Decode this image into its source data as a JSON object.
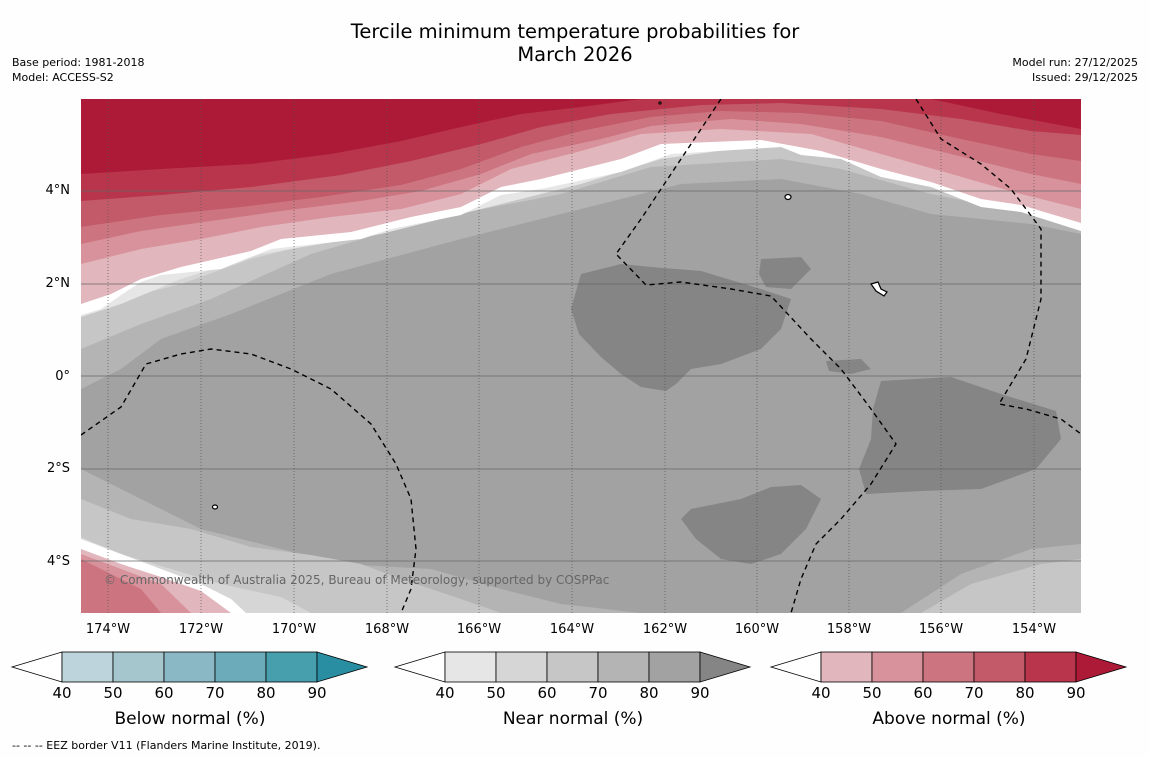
{
  "title": {
    "line1": "Tercile minimum temperature probabilities for",
    "line2": "March 2026"
  },
  "meta_left": {
    "base_period": "Base period: 1981-2018",
    "model": "Model: ACCESS-S2"
  },
  "meta_right": {
    "model_run": "Model run: 27/12/2025",
    "issued": "Issued: 29/12/2025"
  },
  "latitude_labels": [
    "4°N",
    "2°N",
    "0°",
    "2°S",
    "4°S"
  ],
  "longitude_labels": [
    "174°W",
    "172°W",
    "170°W",
    "168°W",
    "166°W",
    "164°W",
    "162°W",
    "160°W",
    "158°W",
    "156°W",
    "154°W"
  ],
  "copyright": "© Commonwealth of Australia 2025, Bureau of Meteorology, supported by COSPPac",
  "colorbars": [
    {
      "label": "Below normal (%)",
      "ticks": [
        "40",
        "50",
        "60",
        "70",
        "80",
        "90"
      ],
      "colors": [
        "#bdd4dc",
        "#a5c6cc",
        "#8ab8c4",
        "#6cabb9",
        "#479ead",
        "#2a8ea3"
      ]
    },
    {
      "label": "Near normal (%)",
      "ticks": [
        "40",
        "50",
        "60",
        "70",
        "80",
        "90"
      ],
      "colors": [
        "#e6e6e6",
        "#d6d6d6",
        "#c6c6c6",
        "#b4b4b4",
        "#a2a2a2",
        "#858585"
      ]
    },
    {
      "label": "Above normal (%)",
      "ticks": [
        "40",
        "50",
        "60",
        "70",
        "80",
        "90"
      ],
      "colors": [
        "#e2b6bd",
        "#d8929c",
        "#cc7580",
        "#c35a69",
        "#b8354b",
        "#ad1a37"
      ]
    }
  ],
  "footer": "--  --  -- EEZ border V11 (Flanders Marine Institute, 2019)."
}
